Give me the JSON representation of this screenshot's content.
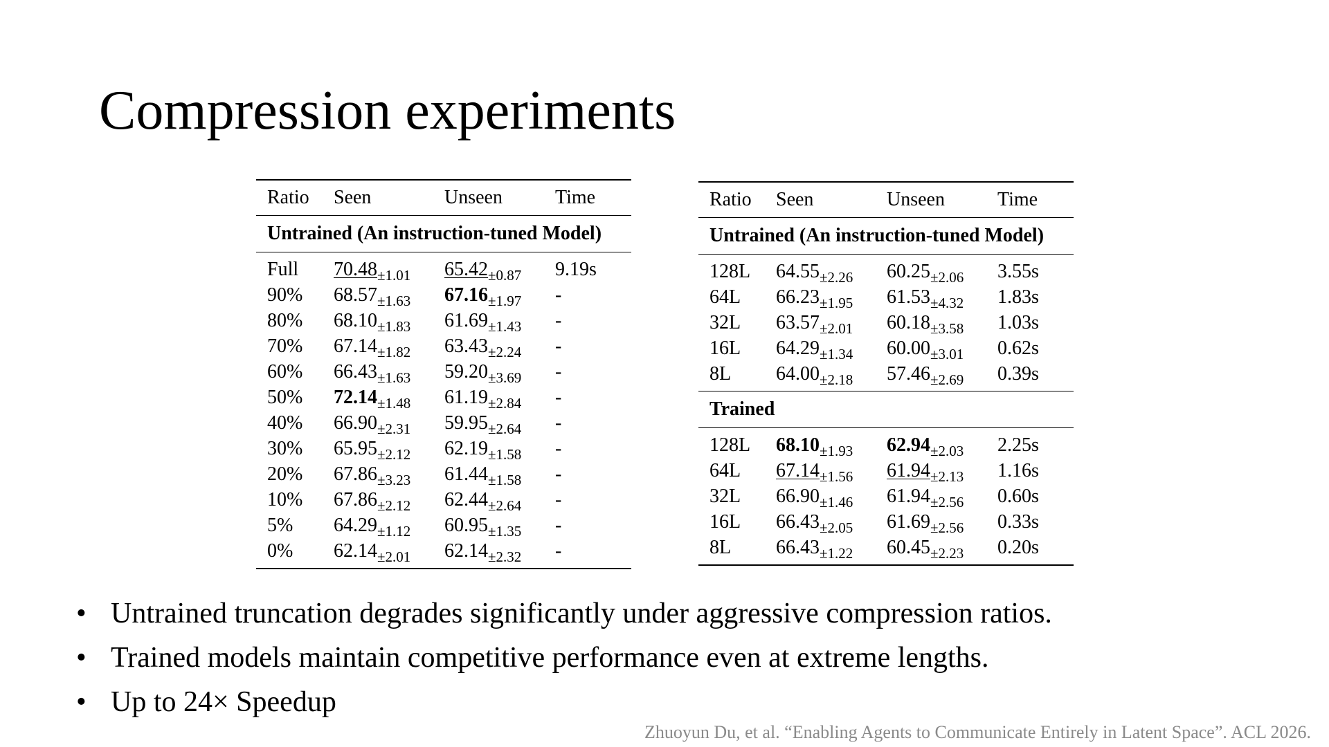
{
  "slide": {
    "title": "Compression experiments"
  },
  "tables": [
    {
      "headers": [
        "Ratio",
        "Seen",
        "Unseen",
        "Time"
      ],
      "sections": [
        {
          "title": "Untrained (An instruction-tuned Model)",
          "rows": [
            {
              "label": "Full",
              "seen": {
                "v": "70.48",
                "s": "±1.01",
                "style": "u"
              },
              "unseen": {
                "v": "65.42",
                "s": "±0.87",
                "style": "u"
              },
              "time": "9.19s"
            },
            {
              "label": "90%",
              "seen": {
                "v": "68.57",
                "s": "±1.63",
                "style": ""
              },
              "unseen": {
                "v": "67.16",
                "s": "±1.97",
                "style": "b"
              },
              "time": "-"
            },
            {
              "label": "80%",
              "seen": {
                "v": "68.10",
                "s": "±1.83",
                "style": ""
              },
              "unseen": {
                "v": "61.69",
                "s": "±1.43",
                "style": ""
              },
              "time": "-"
            },
            {
              "label": "70%",
              "seen": {
                "v": "67.14",
                "s": "±1.82",
                "style": ""
              },
              "unseen": {
                "v": "63.43",
                "s": "±2.24",
                "style": ""
              },
              "time": "-"
            },
            {
              "label": "60%",
              "seen": {
                "v": "66.43",
                "s": "±1.63",
                "style": ""
              },
              "unseen": {
                "v": "59.20",
                "s": "±3.69",
                "style": ""
              },
              "time": "-"
            },
            {
              "label": "50%",
              "seen": {
                "v": "72.14",
                "s": "±1.48",
                "style": "b"
              },
              "unseen": {
                "v": "61.19",
                "s": "±2.84",
                "style": ""
              },
              "time": "-"
            },
            {
              "label": "40%",
              "seen": {
                "v": "66.90",
                "s": "±2.31",
                "style": ""
              },
              "unseen": {
                "v": "59.95",
                "s": "±2.64",
                "style": ""
              },
              "time": "-"
            },
            {
              "label": "30%",
              "seen": {
                "v": "65.95",
                "s": "±2.12",
                "style": ""
              },
              "unseen": {
                "v": "62.19",
                "s": "±1.58",
                "style": ""
              },
              "time": "-"
            },
            {
              "label": "20%",
              "seen": {
                "v": "67.86",
                "s": "±3.23",
                "style": ""
              },
              "unseen": {
                "v": "61.44",
                "s": "±1.58",
                "style": ""
              },
              "time": "-"
            },
            {
              "label": "10%",
              "seen": {
                "v": "67.86",
                "s": "±2.12",
                "style": ""
              },
              "unseen": {
                "v": "62.44",
                "s": "±2.64",
                "style": ""
              },
              "time": "-"
            },
            {
              "label": "5%",
              "seen": {
                "v": "64.29",
                "s": "±1.12",
                "style": ""
              },
              "unseen": {
                "v": "60.95",
                "s": "±1.35",
                "style": ""
              },
              "time": "-"
            },
            {
              "label": "0%",
              "seen": {
                "v": "62.14",
                "s": "±2.01",
                "style": ""
              },
              "unseen": {
                "v": "62.14",
                "s": "±2.32",
                "style": ""
              },
              "time": "-"
            }
          ]
        }
      ]
    },
    {
      "headers": [
        "Ratio",
        "Seen",
        "Unseen",
        "Time"
      ],
      "sections": [
        {
          "title": "Untrained (An instruction-tuned Model)",
          "rows": [
            {
              "label": "128L",
              "seen": {
                "v": "64.55",
                "s": "±2.26",
                "style": ""
              },
              "unseen": {
                "v": "60.25",
                "s": "±2.06",
                "style": ""
              },
              "time": "3.55s"
            },
            {
              "label": "64L",
              "seen": {
                "v": "66.23",
                "s": "±1.95",
                "style": ""
              },
              "unseen": {
                "v": "61.53",
                "s": "±4.32",
                "style": ""
              },
              "time": "1.83s"
            },
            {
              "label": "32L",
              "seen": {
                "v": "63.57",
                "s": "±2.01",
                "style": ""
              },
              "unseen": {
                "v": "60.18",
                "s": "±3.58",
                "style": ""
              },
              "time": "1.03s"
            },
            {
              "label": "16L",
              "seen": {
                "v": "64.29",
                "s": "±1.34",
                "style": ""
              },
              "unseen": {
                "v": "60.00",
                "s": "±3.01",
                "style": ""
              },
              "time": "0.62s"
            },
            {
              "label": "8L",
              "seen": {
                "v": "64.00",
                "s": "±2.18",
                "style": ""
              },
              "unseen": {
                "v": "57.46",
                "s": "±2.69",
                "style": ""
              },
              "time": "0.39s"
            }
          ]
        },
        {
          "title": "Trained",
          "rows": [
            {
              "label": "128L",
              "seen": {
                "v": "68.10",
                "s": "±1.93",
                "style": "b"
              },
              "unseen": {
                "v": "62.94",
                "s": "±2.03",
                "style": "b"
              },
              "time": "2.25s"
            },
            {
              "label": "64L",
              "seen": {
                "v": "67.14",
                "s": "±1.56",
                "style": "u"
              },
              "unseen": {
                "v": "61.94",
                "s": "±2.13",
                "style": "u"
              },
              "time": "1.16s"
            },
            {
              "label": "32L",
              "seen": {
                "v": "66.90",
                "s": "±1.46",
                "style": ""
              },
              "unseen": {
                "v": "61.94",
                "s": "±2.56",
                "style": ""
              },
              "time": "0.60s"
            },
            {
              "label": "16L",
              "seen": {
                "v": "66.43",
                "s": "±2.05",
                "style": ""
              },
              "unseen": {
                "v": "61.69",
                "s": "±2.56",
                "style": ""
              },
              "time": "0.33s"
            },
            {
              "label": "8L",
              "seen": {
                "v": "66.43",
                "s": "±1.22",
                "style": ""
              },
              "unseen": {
                "v": "60.45",
                "s": "±2.23",
                "style": ""
              },
              "time": "0.20s"
            }
          ]
        }
      ]
    }
  ],
  "bullets": [
    "Untrained truncation degrades significantly under aggressive compression ratios.",
    "Trained models maintain competitive performance even at extreme lengths.",
    "Up to 24× Speedup"
  ],
  "bullet_marker": "•",
  "citation": "Zhuoyun Du, et al. “Enabling Agents to Communicate Entirely in Latent Space”. ACL 2026."
}
